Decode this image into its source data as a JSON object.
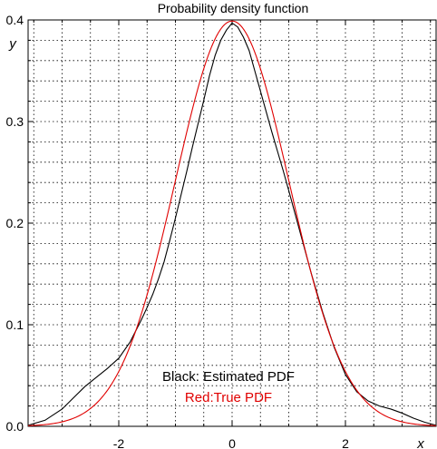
{
  "chart_data": {
    "type": "line",
    "title": "Probability density function",
    "xlabel": "x",
    "ylabel": "y",
    "xlim": [
      -3.6,
      3.6
    ],
    "ylim": [
      0,
      0.4
    ],
    "x_ticks": [
      -2,
      0,
      2
    ],
    "x_tick_labels": [
      "-2",
      "0",
      "2"
    ],
    "y_ticks": [
      0.0,
      0.1,
      0.2,
      0.3,
      0.4
    ],
    "y_tick_labels": [
      "0.0",
      "0.1",
      "0.2",
      "0.3",
      "0.4"
    ],
    "grid": true,
    "annotations": [
      {
        "text": "Black: Estimated PDF",
        "color": "#000000"
      },
      {
        "text": "Red:True PDF",
        "color": "#e00000"
      }
    ],
    "series": [
      {
        "color": "#000000",
        "x": [
          -3.6,
          -3.3,
          -3.0,
          -2.8,
          -2.6,
          -2.4,
          -2.2,
          -2.0,
          -1.8,
          -1.6,
          -1.5,
          -1.4,
          -1.3,
          -1.2,
          -1.1,
          -1.0,
          -0.9,
          -0.8,
          -0.7,
          -0.6,
          -0.5,
          -0.4,
          -0.3,
          -0.2,
          -0.1,
          0.0,
          0.1,
          0.2,
          0.3,
          0.4,
          0.5,
          0.6,
          0.7,
          0.8,
          0.9,
          1.0,
          1.2,
          1.4,
          1.6,
          1.8,
          2.0,
          2.2,
          2.4,
          2.6,
          2.8,
          3.0,
          3.2,
          3.4,
          3.6
        ],
        "y": [
          0.001,
          0.006,
          0.017,
          0.028,
          0.039,
          0.048,
          0.057,
          0.067,
          0.083,
          0.105,
          0.117,
          0.13,
          0.145,
          0.162,
          0.183,
          0.205,
          0.228,
          0.251,
          0.275,
          0.298,
          0.321,
          0.345,
          0.365,
          0.38,
          0.39,
          0.397,
          0.393,
          0.383,
          0.37,
          0.35,
          0.33,
          0.31,
          0.29,
          0.271,
          0.252,
          0.232,
          0.191,
          0.15,
          0.112,
          0.078,
          0.051,
          0.034,
          0.025,
          0.02,
          0.017,
          0.013,
          0.008,
          0.004,
          0.001
        ]
      },
      {
        "color": "#e00000",
        "function": "standard-normal-pdf"
      }
    ]
  }
}
